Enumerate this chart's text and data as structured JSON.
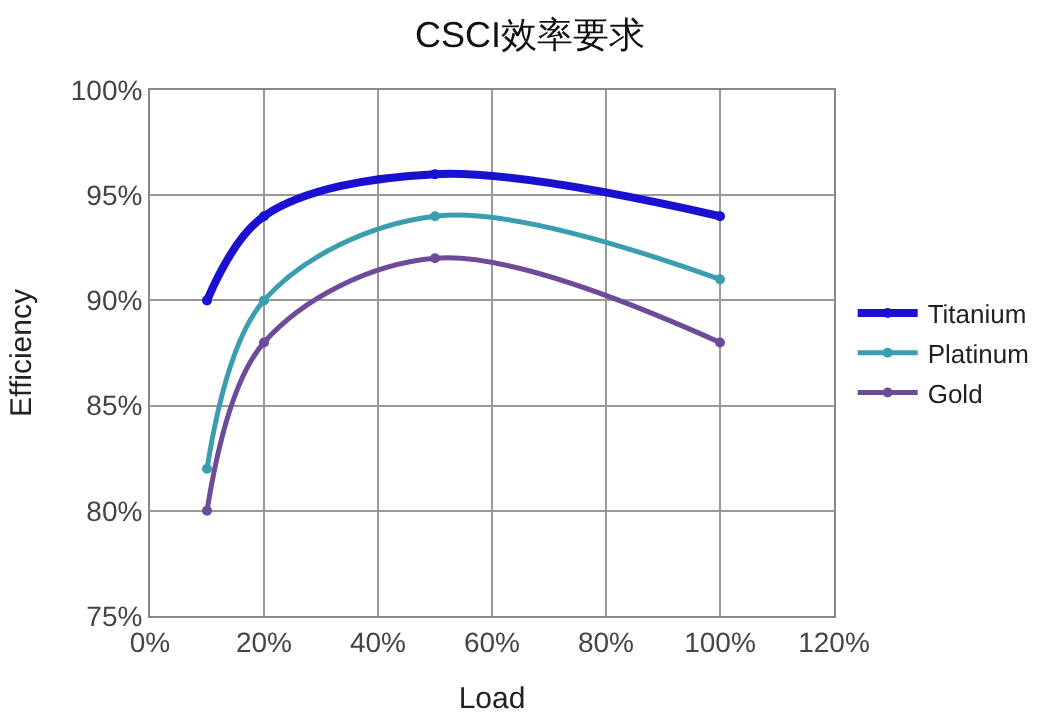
{
  "chart_data": {
    "type": "line",
    "title": "CSCI效率要求",
    "xlabel": "Load",
    "ylabel": "Efficiency",
    "x": [
      10,
      20,
      50,
      100
    ],
    "series": [
      {
        "name": "Titanium",
        "color": "#1a10d0",
        "values": [
          90,
          94,
          96,
          94
        ]
      },
      {
        "name": "Platinum",
        "color": "#3a9db0",
        "values": [
          82,
          90,
          94,
          91
        ]
      },
      {
        "name": "Gold",
        "color": "#6e4b9a",
        "values": [
          80,
          88,
          92,
          88
        ]
      }
    ],
    "xlim": [
      0,
      120
    ],
    "xticks": [
      {
        "value": 0,
        "label": "0%"
      },
      {
        "value": 20,
        "label": "20%"
      },
      {
        "value": 40,
        "label": "40%"
      },
      {
        "value": 60,
        "label": "60%"
      },
      {
        "value": 80,
        "label": "80%"
      },
      {
        "value": 100,
        "label": "100%"
      },
      {
        "value": 120,
        "label": "120%"
      }
    ],
    "ylim": [
      75,
      100
    ],
    "yticks": [
      {
        "value": 75,
        "label": "75%"
      },
      {
        "value": 80,
        "label": "80%"
      },
      {
        "value": 85,
        "label": "85%"
      },
      {
        "value": 90,
        "label": "90%"
      },
      {
        "value": 95,
        "label": "95%"
      },
      {
        "value": 100,
        "label": "100%"
      }
    ],
    "grid": true,
    "legend": "right",
    "marker": "circle",
    "line_style": "solid"
  }
}
